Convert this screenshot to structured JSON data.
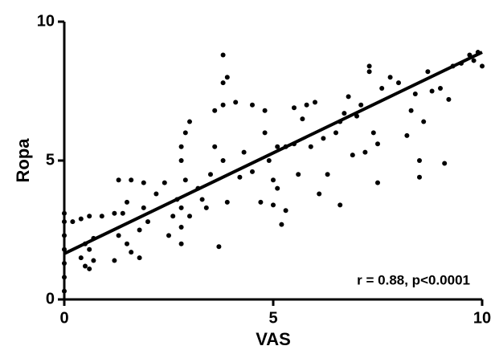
{
  "chart_data": {
    "type": "scatter",
    "x_label": "VAS",
    "y_label": "Ropa",
    "annotation": "r = 0.88, p<0.0001",
    "xlim": [
      0,
      10
    ],
    "ylim": [
      0,
      10
    ],
    "xticks": [
      0,
      5,
      10
    ],
    "yticks": [
      0,
      5,
      10
    ],
    "color": "#000000",
    "fit_line": {
      "x": [
        0,
        10
      ],
      "y": [
        1.65,
        8.9
      ]
    },
    "x": [
      0,
      0,
      0,
      0,
      0,
      0,
      0,
      0.2,
      0.4,
      0.6,
      0.9,
      1.2,
      1.4,
      0.4,
      0.5,
      0.6,
      0.6,
      0.7,
      0.5,
      0.7,
      1.3,
      1.5,
      1.6,
      1.8,
      1.8,
      1.9,
      1.3,
      1.6,
      1.9,
      1.5,
      1.2,
      2.0,
      2.2,
      2.4,
      2.6,
      2.7,
      2.8,
      2.8,
      2.8,
      2.8,
      2.8,
      2.9,
      3.0,
      2.5,
      2.9,
      3.0,
      3.2,
      3.3,
      3.5,
      3.6,
      3.6,
      3.8,
      3.8,
      3.8,
      3.9,
      3.7,
      3.9,
      3.8,
      4.1,
      4.2,
      3.4,
      4.3,
      4.5,
      4.5,
      4.8,
      4.9,
      4.7,
      4.8,
      5.0,
      5.0,
      5.1,
      5.1,
      5.2,
      5.3,
      5.3,
      5.5,
      5.6,
      5.7,
      5.8,
      5.9,
      6.0,
      5.5,
      6.1,
      6.2,
      6.5,
      6.6,
      6.8,
      6.9,
      6.3,
      6.7,
      7.0,
      6.6,
      7.1,
      7.3,
      7.3,
      7.4,
      7.5,
      7.8,
      7.5,
      7.2,
      7.6,
      8.0,
      8.2,
      8.3,
      8.5,
      8.5,
      8.6,
      8.8,
      8.7,
      9.0,
      9.1,
      9.2,
      8.4,
      9.3,
      9.5,
      9.8,
      10,
      9.7,
      9.9
    ],
    "y": [
      0.3,
      0.8,
      1.3,
      1.8,
      2.3,
      2.8,
      3.1,
      2.8,
      2.9,
      3.0,
      3.0,
      3.1,
      3.1,
      1.5,
      1.2,
      1.1,
      1.8,
      1.4,
      2.0,
      2.2,
      2.3,
      2.0,
      1.7,
      1.5,
      2.5,
      3.3,
      4.3,
      4.3,
      4.2,
      3.5,
      1.4,
      2.8,
      3.8,
      4.2,
      3.0,
      3.6,
      2.0,
      2.6,
      3.3,
      5.0,
      5.5,
      6.0,
      6.4,
      2.3,
      4.3,
      3.0,
      4.0,
      3.6,
      4.5,
      5.5,
      6.8,
      7.0,
      7.8,
      8.8,
      8.0,
      1.9,
      3.5,
      5.0,
      7.1,
      4.4,
      3.3,
      5.3,
      7.0,
      4.6,
      6.8,
      5.0,
      3.5,
      6.0,
      4.3,
      3.4,
      4.0,
      5.5,
      2.7,
      3.2,
      5.5,
      5.6,
      4.5,
      6.5,
      7.0,
      5.5,
      7.1,
      6.9,
      3.8,
      5.8,
      6.0,
      6.4,
      7.3,
      5.2,
      4.5,
      6.7,
      6.6,
      3.4,
      7.0,
      8.2,
      8.4,
      6.0,
      5.6,
      8.0,
      4.2,
      5.3,
      7.6,
      7.8,
      5.9,
      6.8,
      4.4,
      5.0,
      6.4,
      7.5,
      8.2,
      7.6,
      4.9,
      7.2,
      7.4,
      8.4,
      8.5,
      8.6,
      8.4,
      8.8,
      8.9
    ]
  }
}
